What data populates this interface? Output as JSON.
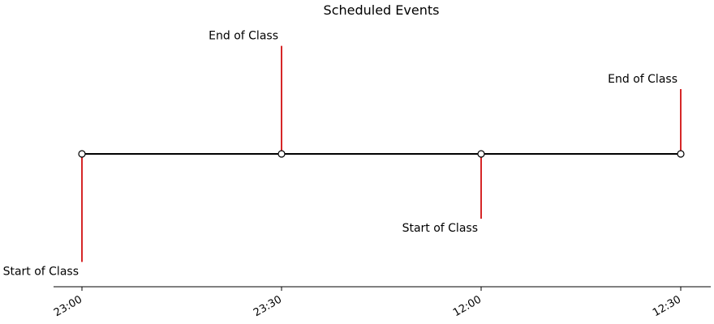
{
  "chart_data": {
    "type": "timeline",
    "title": "Scheduled Events",
    "xlabel": "",
    "ylabel": "",
    "x_ticks": [
      "23:00",
      "23:30",
      "12:00",
      "12:30"
    ],
    "events": [
      {
        "time": "23:00",
        "label": "Start of Class",
        "level": -5
      },
      {
        "time": "23:30",
        "label": "End of Class",
        "level": 5
      },
      {
        "time": "12:00",
        "label": "Start of Class",
        "level": -3
      },
      {
        "time": "12:30",
        "label": "End of Class",
        "level": 3
      }
    ],
    "ylim": [
      -6,
      6
    ],
    "grid": false,
    "colors": {
      "stem": "#d62728",
      "baseline": "#000000",
      "marker_fill": "#ffffff",
      "marker_edge": "#000000"
    }
  }
}
